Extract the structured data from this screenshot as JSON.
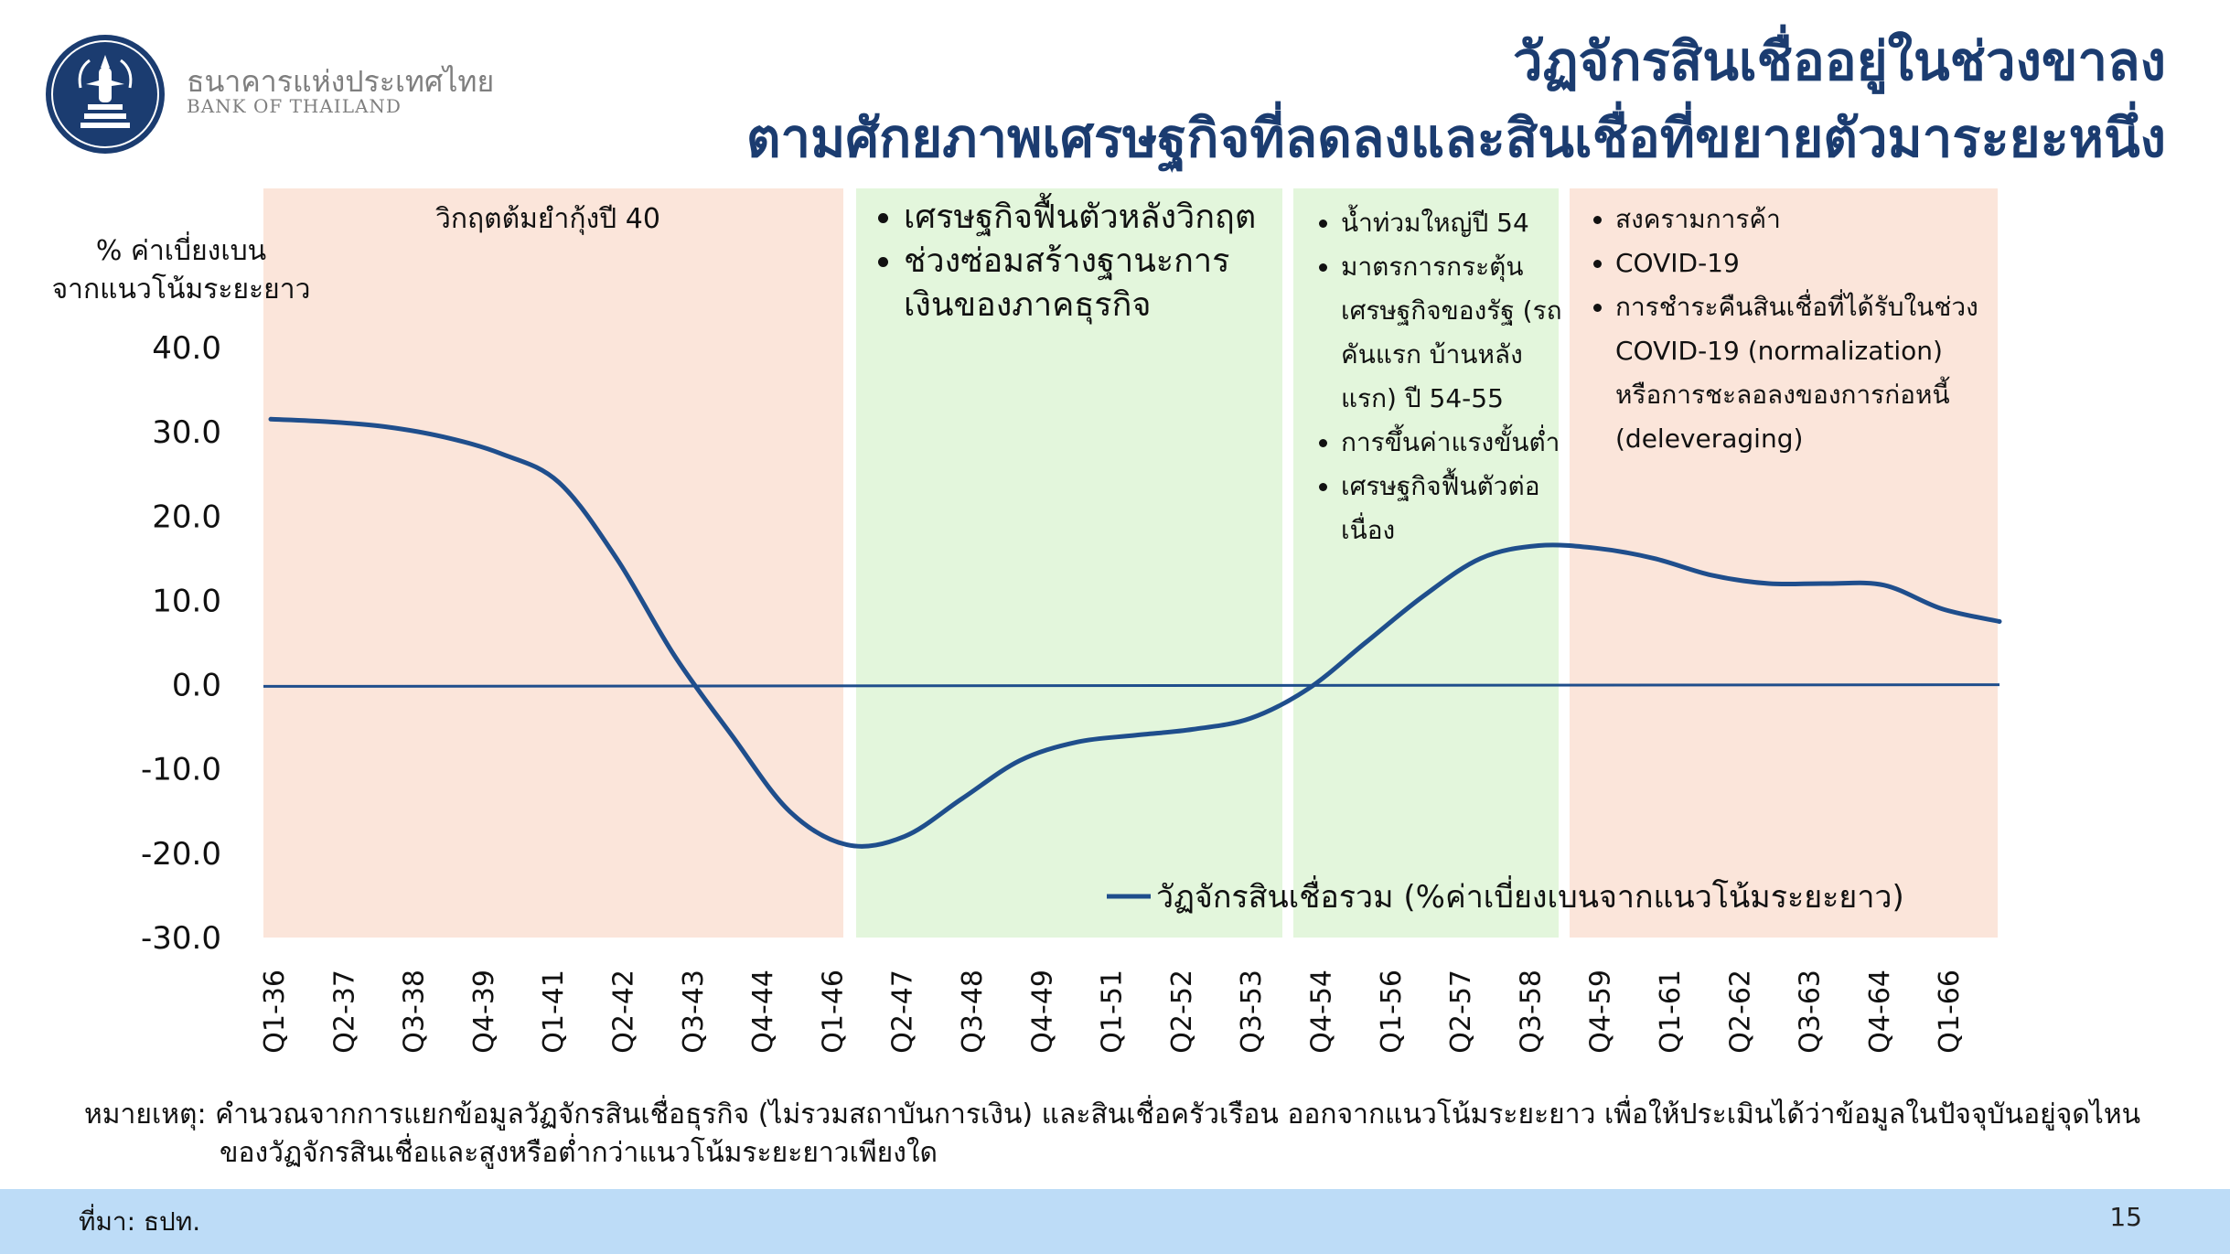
{
  "header": {
    "logo_th": "ธนาคารแห่งประเทศไทย",
    "logo_en": "BANK OF THAILAND",
    "title_line1": "วัฏจักรสินเชื่ออยู่ในช่วงขาลง",
    "title_line2": "ตามศักยภาพเศรษฐกิจที่ลดลงและสินเชื่อที่ขยายตัวมาระยะหนึ่ง"
  },
  "colors": {
    "title": "#1b3c70",
    "line": "#1f4e8c",
    "band_pink": "#fbe5da",
    "band_green": "#e3f6dc",
    "footer": "#bddcf7"
  },
  "bands": [
    {
      "color": "pink",
      "items": [
        "วิกฤตต้มยำกุ้งปี 40"
      ]
    },
    {
      "color": "green",
      "items": [
        "เศรษฐกิจฟื้นตัวหลังวิกฤต",
        "ช่วงซ่อมสร้างฐานะการเงินของภาคธุรกิจ"
      ]
    },
    {
      "color": "green",
      "items": [
        "น้ำท่วมใหญ่ปี 54",
        "มาตรการกระตุ้นเศรษฐกิจของรัฐ (รถคันแรก บ้านหลังแรก) ปี 54-55",
        "การขึ้นค่าแรงขั้นต่ำ",
        "เศรษฐกิจฟื้นตัวต่อเนื่อง"
      ]
    },
    {
      "color": "pink",
      "items": [
        "สงครามการค้า",
        "COVID-19",
        "การชำระคืนสินเชื่อที่ได้รับในช่วง COVID-19 (normalization) หรือการชะลอลงของการก่อหนี้ (deleveraging)"
      ]
    }
  ],
  "chart_data": {
    "type": "line",
    "ylabel_line1": "% ค่าเบี่ยงเบน",
    "ylabel_line2": "จากแนวโน้มระยะยาว",
    "ylim": [
      -30,
      40
    ],
    "yticks": [
      "40.0",
      "30.0",
      "20.0",
      "10.0",
      "0.0",
      "-10.0",
      "-20.0",
      "-30.0"
    ],
    "xticks": [
      "Q1-36",
      "Q2-37",
      "Q3-38",
      "Q4-39",
      "Q1-41",
      "Q2-42",
      "Q3-43",
      "Q4-44",
      "Q1-46",
      "Q2-47",
      "Q3-48",
      "Q4-49",
      "Q1-51",
      "Q2-52",
      "Q3-53",
      "Q4-54",
      "Q1-56",
      "Q2-57",
      "Q3-58",
      "Q4-59",
      "Q1-61",
      "Q2-62",
      "Q3-63",
      "Q4-64",
      "Q1-66"
    ],
    "legend_position": "bottom-right",
    "series": [
      {
        "name": "วัฏจักรสินเชื่อรวม (%ค่าเบี่ยงเบนจากแนวโน้มระยะยาว)",
        "values": [
          31.5,
          31.2,
          30.6,
          29.4,
          27.4,
          24.0,
          15.0,
          3.5,
          -6.0,
          -15.0,
          -19.0,
          -18.0,
          -13.5,
          -9.0,
          -6.8,
          -6.0,
          -5.3,
          -4.0,
          -0.5,
          5.0,
          10.5,
          15.0,
          16.5,
          16.2,
          15.0,
          13.0,
          12.0,
          12.0,
          11.8,
          9.0,
          7.5
        ],
        "x_positions": [
          0,
          0.5,
          1,
          1.5,
          2,
          2.5,
          3,
          3.5,
          4,
          4.5,
          5,
          5.5,
          6,
          6.5,
          7,
          7.5,
          8,
          8.5,
          9,
          9.5,
          10,
          10.5,
          11,
          11.5,
          12,
          12.5,
          13,
          13.5,
          14,
          14.5,
          15
        ],
        "zero_line_values": [
          -0.2,
          0.0
        ]
      }
    ]
  },
  "note": {
    "line1": "หมายเหตุ: คำนวณจากการแยกข้อมูลวัฏจักรสินเชื่อธุรกิจ (ไม่รวมสถาบันการเงิน) และสินเชื่อครัวเรือน ออกจากแนวโน้มระยะยาว เพื่อให้ประเมินได้ว่าข้อมูลในปัจจุบันอยู่จุดไหน",
    "line2": "ของวัฏจักรสินเชื่อและสูงหรือต่ำกว่าแนวโน้มระยะยาวเพียงใด"
  },
  "footer": {
    "source": "ที่มา: ธปท.",
    "page": "15"
  }
}
